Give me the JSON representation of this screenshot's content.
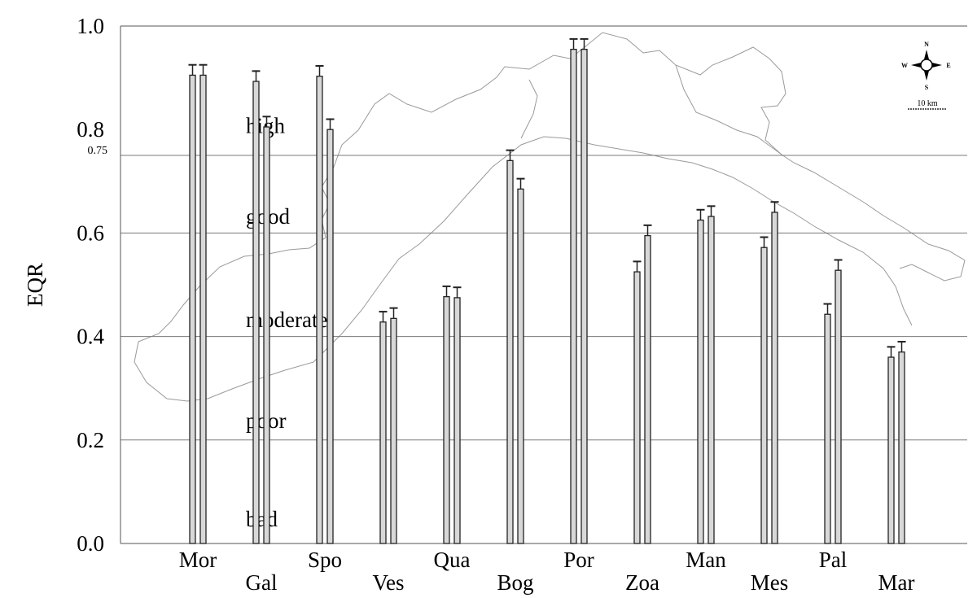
{
  "chart_data": {
    "type": "bar",
    "ylabel": "EQR",
    "xlabel": "",
    "ylim": [
      0,
      1.0
    ],
    "yticks": [
      {
        "value": 0.0,
        "label": "0.0"
      },
      {
        "value": 0.2,
        "label": "0.2"
      },
      {
        "value": 0.4,
        "label": "0.4"
      },
      {
        "value": 0.6,
        "label": "0.6"
      },
      {
        "value": 0.8,
        "label": "0.8"
      },
      {
        "value": 1.0,
        "label": "1.0"
      }
    ],
    "extra_tick": {
      "value": 0.75,
      "label": "0.75"
    },
    "class_boundaries": [
      0.2,
      0.4,
      0.6,
      0.75
    ],
    "class_labels": [
      {
        "label": "high",
        "value": 0.79
      },
      {
        "label": "good",
        "value": 0.615
      },
      {
        "label": "moderate",
        "value": 0.415
      },
      {
        "label": "poor",
        "value": 0.22
      },
      {
        "label": "bad",
        "value": 0.03
      }
    ],
    "categories": [
      {
        "name": "Mor",
        "values": [
          0.905,
          0.905
        ],
        "errors": [
          0.02,
          0.02
        ],
        "row": 0
      },
      {
        "name": "Gal",
        "values": [
          0.893,
          0.805
        ],
        "errors": [
          0.02,
          0.02
        ],
        "row": 1
      },
      {
        "name": "Spo",
        "values": [
          0.903,
          0.8
        ],
        "errors": [
          0.02,
          0.02
        ],
        "row": 0
      },
      {
        "name": "Ves",
        "values": [
          0.428,
          0.435
        ],
        "errors": [
          0.02,
          0.02
        ],
        "row": 1
      },
      {
        "name": "Qua",
        "values": [
          0.477,
          0.475
        ],
        "errors": [
          0.02,
          0.02
        ],
        "row": 0
      },
      {
        "name": "Bog",
        "values": [
          0.74,
          0.685
        ],
        "errors": [
          0.02,
          0.02
        ],
        "row": 1
      },
      {
        "name": "Por",
        "values": [
          0.955,
          0.955
        ],
        "errors": [
          0.02,
          0.02
        ],
        "row": 0
      },
      {
        "name": "Zoa",
        "values": [
          0.525,
          0.595
        ],
        "errors": [
          0.02,
          0.02
        ],
        "row": 1
      },
      {
        "name": "Man",
        "values": [
          0.625,
          0.632
        ],
        "errors": [
          0.02,
          0.02
        ],
        "row": 0
      },
      {
        "name": "Mes",
        "values": [
          0.572,
          0.64
        ],
        "errors": [
          0.02,
          0.02
        ],
        "row": 1
      },
      {
        "name": "Pal",
        "values": [
          0.443,
          0.528
        ],
        "errors": [
          0.02,
          0.02
        ],
        "row": 0
      },
      {
        "name": "Mar",
        "values": [
          0.36,
          0.37
        ],
        "errors": [
          0.02,
          0.02
        ],
        "row": 1
      }
    ],
    "grid": "horizontal lines at class boundaries",
    "legend": "none",
    "inset": {
      "compass": [
        "N",
        "S",
        "W",
        "E"
      ],
      "scale_label": "10 km"
    }
  }
}
